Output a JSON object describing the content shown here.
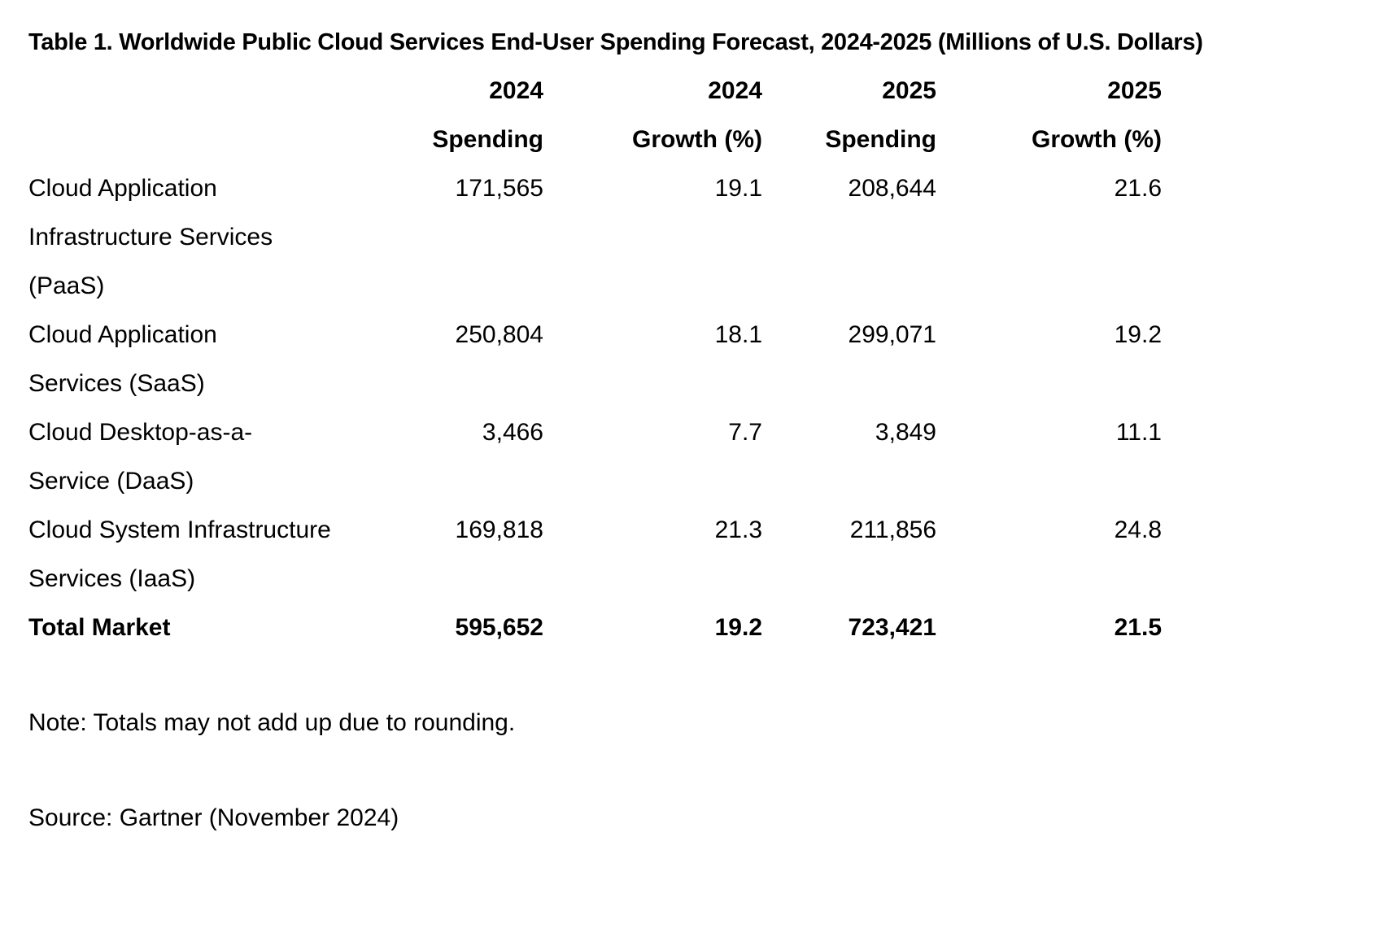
{
  "title": "Table 1. Worldwide Public Cloud Services End-User Spending Forecast, 2024-2025 (Millions of U.S. Dollars)",
  "headers": [
    {
      "line1": "",
      "line2": ""
    },
    {
      "line1": "2024",
      "line2": "Spending"
    },
    {
      "line1": "2024",
      "line2": "Growth (%)"
    },
    {
      "line1": "2025",
      "line2": "Spending"
    },
    {
      "line1": "2025",
      "line2": "Growth (%)"
    }
  ],
  "rows": [
    {
      "segment": "Cloud Application Infrastructure Services (PaaS)",
      "spending_2024": "171,565",
      "growth_2024": "19.1",
      "spending_2025": "208,644",
      "growth_2025": "21.6"
    },
    {
      "segment": "Cloud Application Services (SaaS)",
      "spending_2024": "250,804",
      "growth_2024": "18.1",
      "spending_2025": "299,071",
      "growth_2025": "19.2"
    },
    {
      "segment": "Cloud Desktop-as-a-Service (DaaS)",
      "spending_2024": "3,466",
      "growth_2024": "7.7",
      "spending_2025": "3,849",
      "growth_2025": "11.1"
    },
    {
      "segment": "Cloud System Infrastructure Services (IaaS)",
      "spending_2024": "169,818",
      "growth_2024": "21.3",
      "spending_2025": "211,856",
      "growth_2025": "24.8"
    }
  ],
  "total": {
    "segment": "Total Market",
    "spending_2024": "595,652",
    "growth_2024": "19.2",
    "spending_2025": "723,421",
    "growth_2025": "21.5"
  },
  "note": "Note: Totals may not add up due to rounding.",
  "source": "Source: Gartner (November 2024)"
}
